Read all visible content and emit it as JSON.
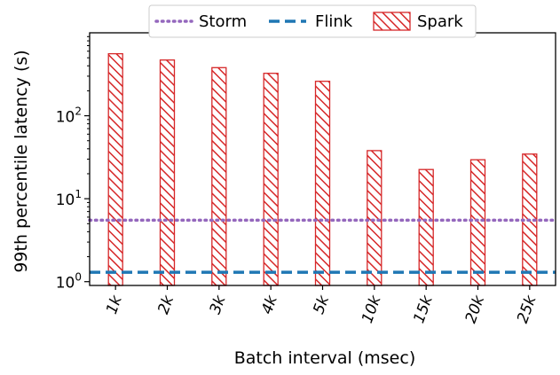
{
  "chart_data": {
    "type": "bar",
    "xlabel": "Batch interval (msec)",
    "ylabel": "99th percentile latency (s)",
    "yscale": "log",
    "ylim": [
      0.9,
      1000
    ],
    "categories": [
      "1k",
      "2k",
      "3k",
      "4k",
      "5k",
      "10k",
      "15k",
      "20k",
      "25k"
    ],
    "yticks": [
      {
        "value": 1,
        "base": "10",
        "exp": "0"
      },
      {
        "value": 10,
        "base": "10",
        "exp": "1"
      },
      {
        "value": 100,
        "base": "10",
        "exp": "2"
      }
    ],
    "series": [
      {
        "name": "Spark",
        "kind": "bar",
        "color": "#d62728",
        "hatch": "diagonal",
        "values": [
          560,
          470,
          380,
          325,
          260,
          38,
          22.5,
          29.5,
          34.5
        ]
      },
      {
        "name": "Storm",
        "kind": "hline",
        "color": "#9467bd",
        "style": "dotted",
        "value": 5.5
      },
      {
        "name": "Flink",
        "kind": "hline",
        "color": "#1f77b4",
        "style": "dashed",
        "value": 1.3
      }
    ],
    "legend": {
      "position": "top-center",
      "columns": 3,
      "order": [
        "Storm",
        "Flink",
        "Spark"
      ]
    }
  }
}
